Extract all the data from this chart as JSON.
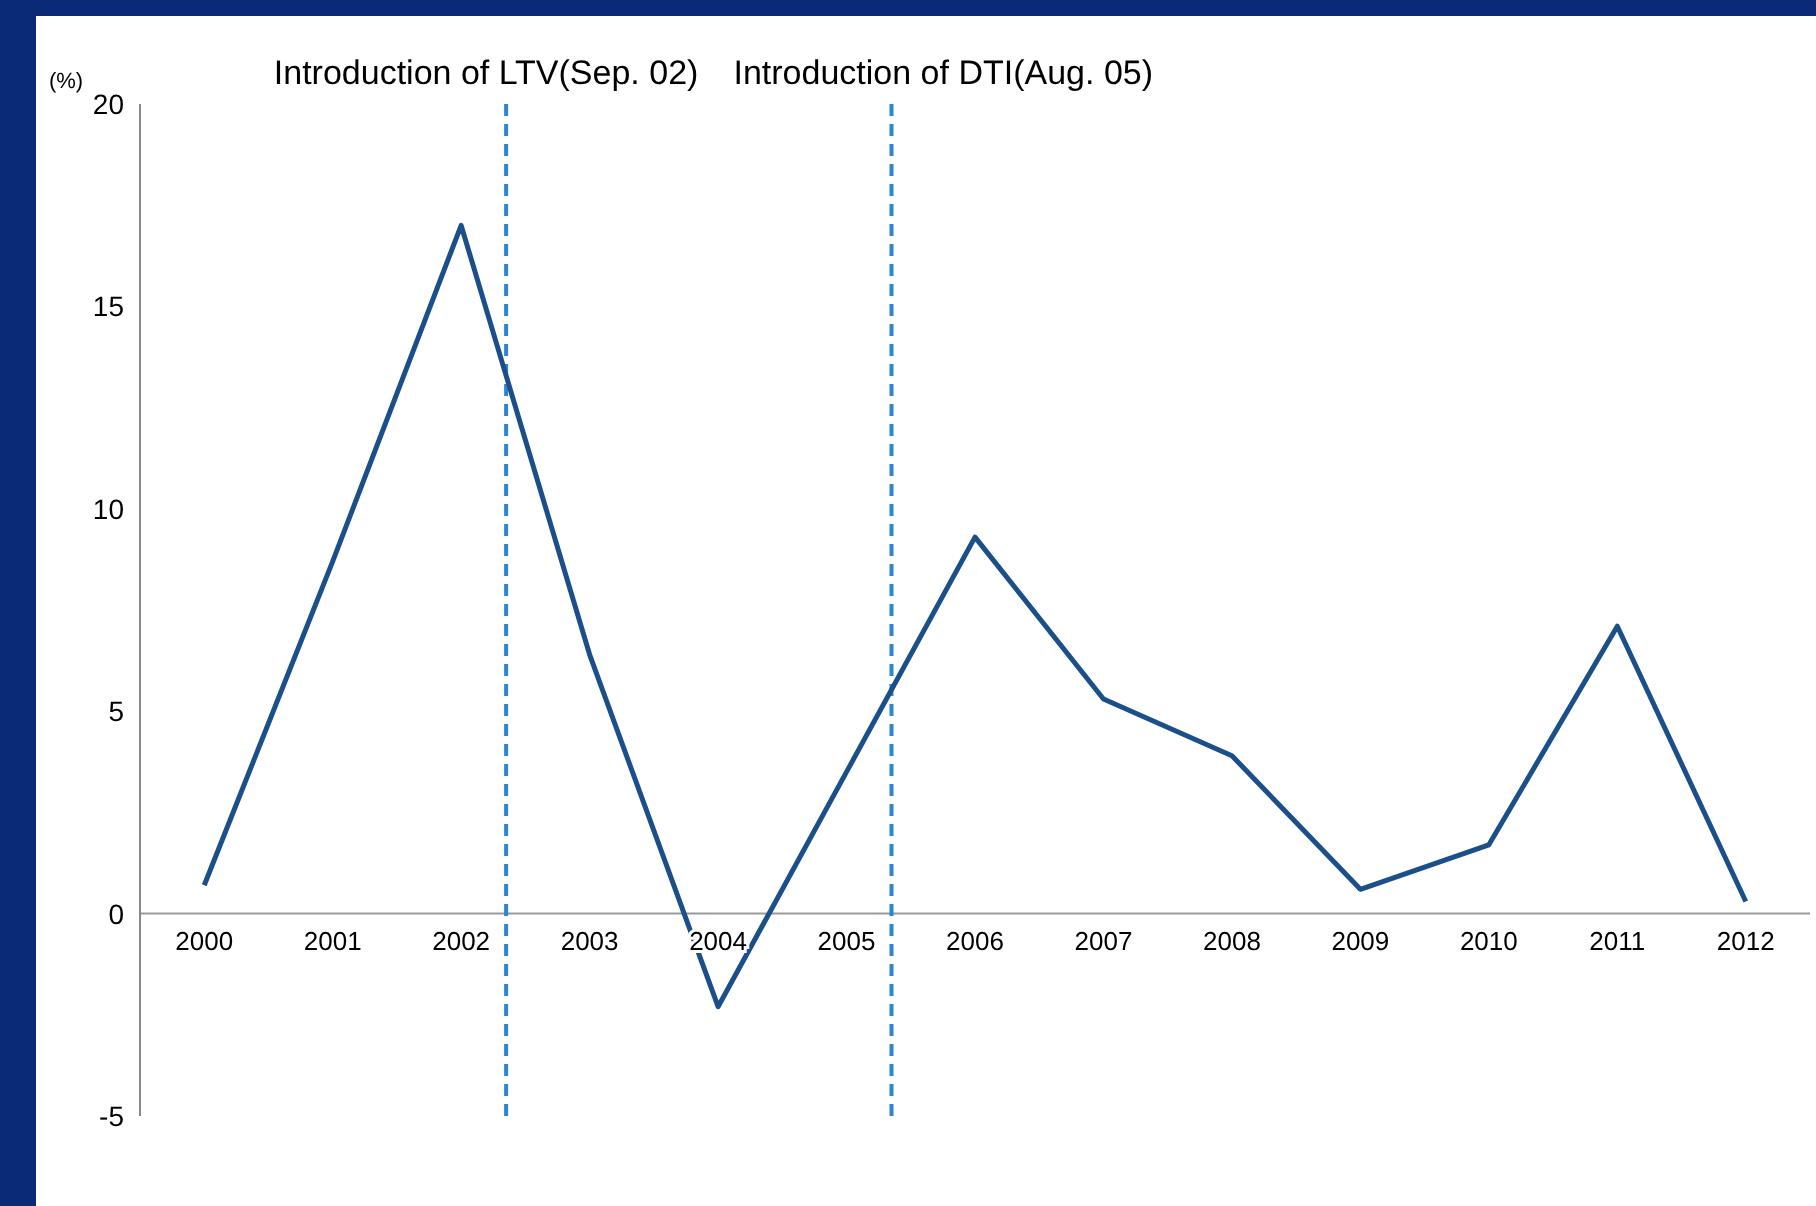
{
  "chart_data": {
    "type": "line",
    "ylabel": "(%)",
    "x": [
      2000,
      2001,
      2002,
      2003,
      2004,
      2005,
      2006,
      2007,
      2008,
      2009,
      2010,
      2011,
      2012
    ],
    "series": [
      {
        "color": "#1b4f8a",
        "values": [
          0.7,
          8.7,
          17.0,
          6.4,
          -2.3,
          3.5,
          9.3,
          5.3,
          3.9,
          0.6,
          1.7,
          7.1,
          0.3
        ]
      }
    ],
    "xlim": [
      1999.5,
      2012.5
    ],
    "xticks": [
      2000,
      2001,
      2002,
      2003,
      2004,
      2005,
      2006,
      2007,
      2008,
      2009,
      2010,
      2011,
      2012
    ],
    "ylim": [
      -5,
      20
    ],
    "yticks": [
      -5,
      0,
      5,
      10,
      15,
      20
    ],
    "grid": false,
    "legend": false,
    "marker": "none",
    "line_style": "solid",
    "ref_lines": [
      {
        "axis": "x",
        "value": 2002.35,
        "label": "Introduction of LTV(Sep. 02)",
        "color": "#2e86d0",
        "line_style": "dashed"
      },
      {
        "axis": "x",
        "value": 2005.35,
        "label": "Introduction of DTI(Aug. 05)",
        "color": "#2e86d0",
        "line_style": "dashed"
      }
    ]
  }
}
